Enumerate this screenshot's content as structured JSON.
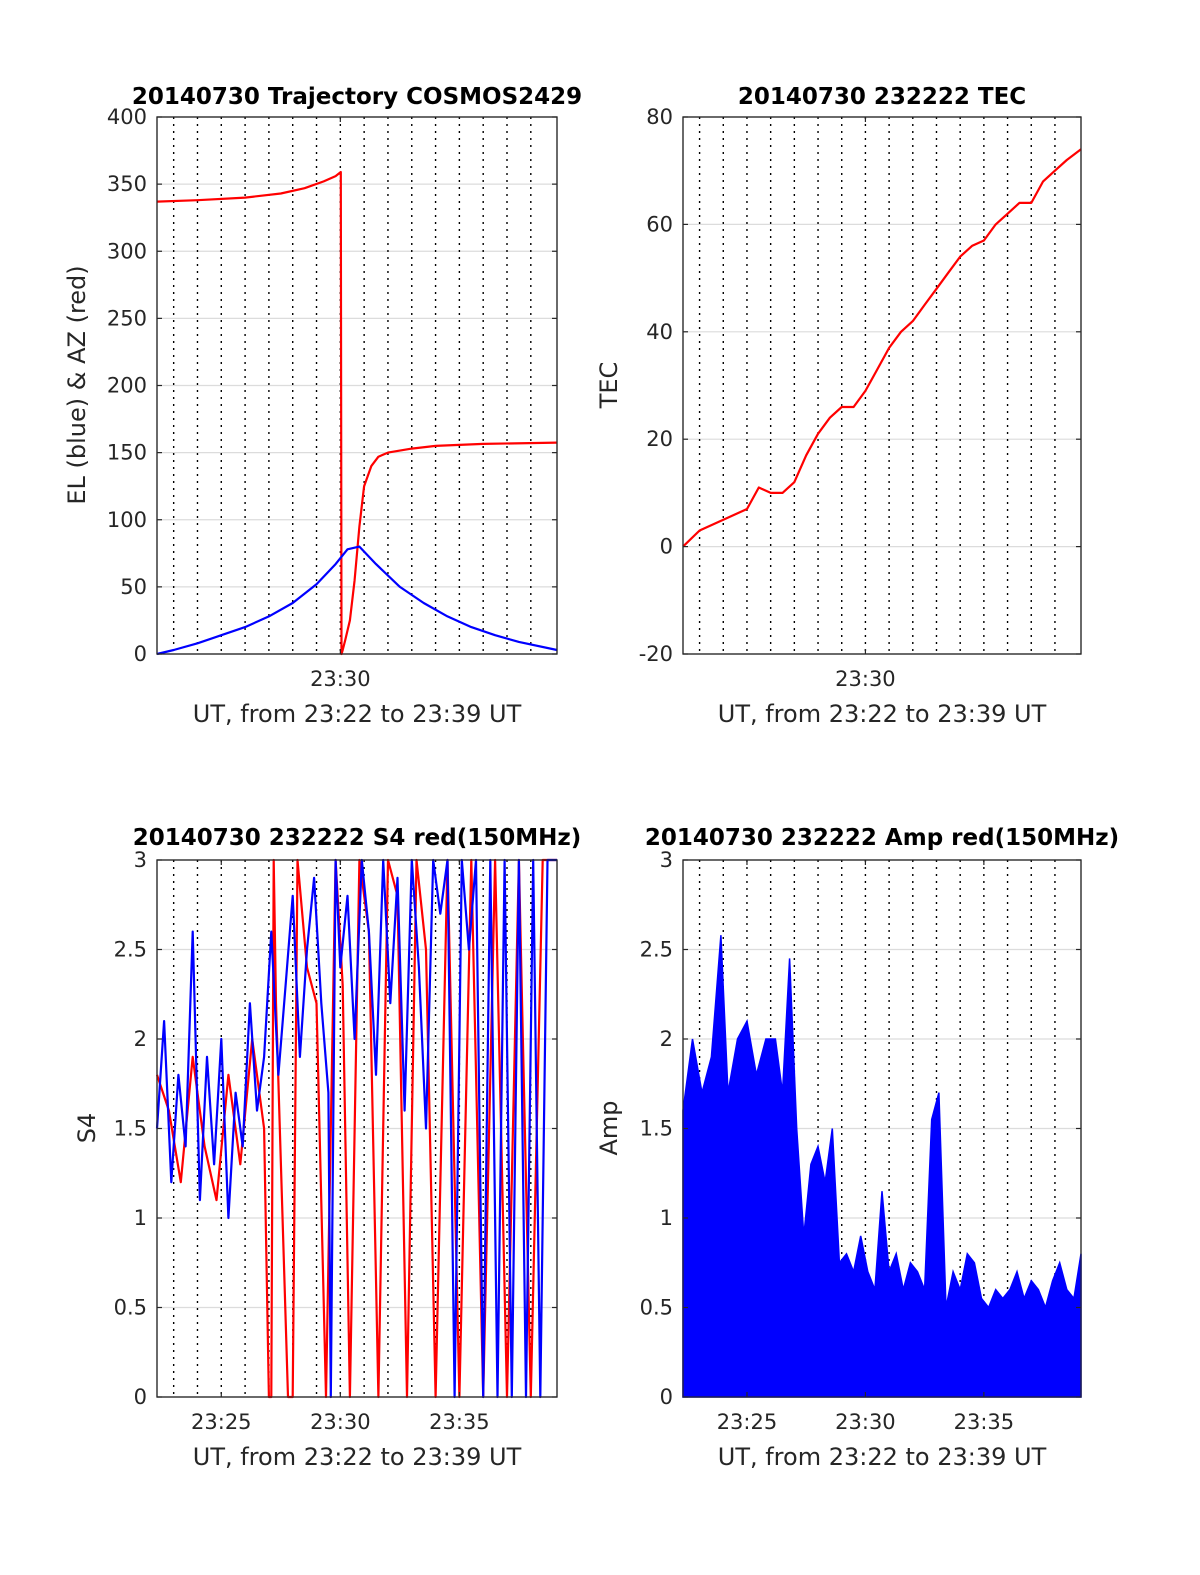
{
  "colors": {
    "red": "#ff0000",
    "blue": "#0000ff",
    "grid": "#dcdcdc"
  },
  "chart_data": [
    {
      "type": "line",
      "title": "20140730 Trajectory COSMOS2429",
      "xlabel": "UT, from 23:22 to 23:39 UT",
      "ylabel": "EL (blue) & AZ (red)",
      "xlim": [
        22.3,
        39.1
      ],
      "ylim": [
        0,
        400
      ],
      "yticks": [
        0,
        50,
        100,
        150,
        200,
        250,
        300,
        350,
        400
      ],
      "xticks": [
        {
          "v": 30,
          "label": "23:30"
        }
      ],
      "vgrid": [
        23,
        24,
        25,
        26,
        27,
        28,
        29,
        30,
        31,
        32,
        33,
        34,
        35,
        36,
        37,
        38
      ],
      "series": [
        {
          "color": "red",
          "x": [
            22.3,
            24,
            26,
            27.5,
            28.5,
            29.3,
            29.8,
            30.02,
            30.05,
            30.1,
            30.2,
            30.4,
            30.6,
            30.8,
            31.0,
            31.3,
            31.6,
            32.0,
            33.0,
            34.0,
            36.0,
            39.1
          ],
          "y": [
            337,
            338,
            340,
            343,
            347,
            352,
            356,
            359,
            0,
            3,
            10,
            25,
            55,
            95,
            125,
            140,
            147,
            150,
            153,
            155,
            156.5,
            157.5
          ]
        },
        {
          "color": "blue",
          "x": [
            22.3,
            23,
            24,
            25,
            26,
            27,
            28,
            29,
            29.8,
            30.3,
            30.8,
            31.5,
            32.5,
            33.5,
            34.5,
            35.5,
            36.5,
            37.5,
            39.1
          ],
          "y": [
            0,
            3,
            8,
            14,
            20,
            28,
            38,
            52,
            67,
            78,
            80,
            67,
            50,
            38,
            28,
            20,
            14,
            9,
            3
          ]
        }
      ]
    },
    {
      "type": "line",
      "title": "20140730 232222 TEC",
      "xlabel": "UT, from 23:22 to 23:39 UT",
      "ylabel": "TEC",
      "xlim": [
        22.3,
        39.1
      ],
      "ylim": [
        -20,
        80
      ],
      "yticks": [
        -20,
        0,
        20,
        40,
        60,
        80
      ],
      "xticks": [
        {
          "v": 30,
          "label": "23:30"
        }
      ],
      "vgrid": [
        23,
        24,
        25,
        26,
        27,
        28,
        29,
        30,
        31,
        32,
        33,
        34,
        35,
        36,
        37,
        38
      ],
      "series": [
        {
          "color": "red",
          "x": [
            22.3,
            23,
            24,
            25,
            25.5,
            26,
            26.5,
            27,
            27.5,
            28,
            28.5,
            29,
            29.5,
            30,
            30.5,
            31,
            31.5,
            32,
            32.5,
            33,
            33.5,
            34,
            34.5,
            35,
            35.5,
            36,
            36.5,
            37,
            37.5,
            38,
            38.5,
            39.1
          ],
          "y": [
            0,
            3,
            5,
            7,
            11,
            10,
            10,
            12,
            17,
            21,
            24,
            26,
            26,
            29,
            33,
            37,
            40,
            42,
            45,
            48,
            51,
            54,
            56,
            57,
            60,
            62,
            64,
            64,
            68,
            70,
            72,
            74
          ]
        }
      ]
    },
    {
      "type": "line",
      "title": "20140730 232222 S4 red(150MHz)",
      "xlabel": "UT, from 23:22 to 23:39 UT",
      "ylabel": "S4",
      "xlim": [
        22.3,
        39.1
      ],
      "ylim": [
        0,
        3
      ],
      "yticks": [
        0,
        0.5,
        1,
        1.5,
        2,
        2.5,
        3
      ],
      "xticks": [
        {
          "v": 25,
          "label": "23:25"
        },
        {
          "v": 30,
          "label": "23:30"
        },
        {
          "v": 35,
          "label": "23:35"
        }
      ],
      "vgrid": [
        23,
        24,
        25,
        26,
        27,
        28,
        29,
        30,
        31,
        32,
        33,
        34,
        35,
        36,
        37,
        38
      ],
      "series": [
        {
          "color": "red",
          "x": [
            22.3,
            22.8,
            23.3,
            23.8,
            24.3,
            24.8,
            25.3,
            25.8,
            26.3,
            26.8,
            27.0,
            27.1,
            27.2,
            27.3,
            27.8,
            28.0,
            28.2,
            28.6,
            29.0,
            29.4,
            29.8,
            30.1,
            30.4,
            30.8,
            31.2,
            31.6,
            32.0,
            32.4,
            32.8,
            33.2,
            33.6,
            34.0,
            34.5,
            35.0,
            35.5,
            36.0,
            36.5,
            37.0,
            37.5,
            38.0,
            38.5,
            39.1
          ],
          "y": [
            1.8,
            1.6,
            1.2,
            1.9,
            1.4,
            1.1,
            1.8,
            1.3,
            2.0,
            1.5,
            0,
            0,
            3,
            2.2,
            0,
            0,
            3,
            2.4,
            2.2,
            0,
            3,
            2.3,
            0,
            3,
            2.6,
            0,
            3,
            2.8,
            0,
            3,
            2.5,
            0,
            3,
            0,
            3,
            0,
            3,
            0,
            3,
            0,
            3,
            3
          ]
        },
        {
          "color": "blue",
          "x": [
            22.3,
            22.6,
            22.9,
            23.2,
            23.5,
            23.8,
            24.1,
            24.4,
            24.7,
            25.0,
            25.3,
            25.6,
            25.9,
            26.2,
            26.5,
            26.8,
            27.1,
            27.4,
            27.7,
            28.0,
            28.3,
            28.6,
            28.9,
            29.2,
            29.5,
            29.6,
            29.8,
            30.0,
            30.3,
            30.6,
            30.9,
            31.2,
            31.5,
            31.8,
            32.1,
            32.4,
            32.7,
            33.0,
            33.3,
            33.6,
            33.9,
            34.2,
            34.5,
            34.8,
            35.1,
            35.4,
            35.7,
            36.0,
            36.3,
            36.6,
            36.9,
            37.2,
            37.5,
            37.8,
            38.1,
            38.4,
            38.7,
            39.1
          ],
          "y": [
            1.5,
            2.1,
            1.2,
            1.8,
            1.4,
            2.6,
            1.1,
            1.9,
            1.3,
            2.0,
            1.0,
            1.7,
            1.4,
            2.2,
            1.6,
            1.9,
            2.6,
            1.8,
            2.3,
            2.8,
            1.9,
            2.5,
            2.9,
            2.2,
            1.7,
            0,
            3,
            2.4,
            2.8,
            2.0,
            3,
            2.6,
            1.8,
            3,
            2.2,
            2.9,
            1.6,
            3,
            2.4,
            1.5,
            3,
            2.7,
            3,
            0,
            3,
            2.5,
            3,
            0,
            3,
            0,
            3,
            0,
            3,
            0,
            3,
            0,
            3,
            3
          ]
        }
      ]
    },
    {
      "type": "line",
      "title": "20140730 232222 Amp red(150MHz)",
      "xlabel": "UT, from 23:22 to 23:39 UT",
      "ylabel": "Amp",
      "xlim": [
        22.3,
        39.1
      ],
      "ylim": [
        0,
        3
      ],
      "yticks": [
        0,
        0.5,
        1,
        1.5,
        2,
        2.5,
        3
      ],
      "xticks": [
        {
          "v": 25,
          "label": "23:25"
        },
        {
          "v": 30,
          "label": "23:30"
        },
        {
          "v": 35,
          "label": "23:35"
        }
      ],
      "vgrid": [
        23,
        24,
        25,
        26,
        27,
        28,
        29,
        30,
        31,
        32,
        33,
        34,
        35,
        36,
        37,
        38
      ],
      "series": [
        {
          "color": "blue",
          "envelope": true,
          "x": [
            22.3,
            22.7,
            23.1,
            23.5,
            23.9,
            24.2,
            24.6,
            25.0,
            25.4,
            25.8,
            26.2,
            26.5,
            26.8,
            27.1,
            27.4,
            27.7,
            28.0,
            28.3,
            28.6,
            28.9,
            29.2,
            29.5,
            29.8,
            30.1,
            30.4,
            30.7,
            31.0,
            31.3,
            31.6,
            31.9,
            32.2,
            32.5,
            32.8,
            33.1,
            33.4,
            33.7,
            34.0,
            34.3,
            34.6,
            34.9,
            35.2,
            35.5,
            35.8,
            36.1,
            36.4,
            36.7,
            37.0,
            37.3,
            37.6,
            37.9,
            38.2,
            38.5,
            38.8,
            39.1
          ],
          "y": [
            1.6,
            2.0,
            1.7,
            1.9,
            2.58,
            1.7,
            2.0,
            2.1,
            1.8,
            2.0,
            2.0,
            1.7,
            2.45,
            1.5,
            0.9,
            1.3,
            1.4,
            1.2,
            1.5,
            0.75,
            0.8,
            0.7,
            0.9,
            0.7,
            0.6,
            1.15,
            0.7,
            0.8,
            0.6,
            0.75,
            0.7,
            0.6,
            1.55,
            1.7,
            0.5,
            0.7,
            0.6,
            0.8,
            0.75,
            0.55,
            0.5,
            0.6,
            0.55,
            0.6,
            0.7,
            0.55,
            0.65,
            0.6,
            0.5,
            0.65,
            0.75,
            0.6,
            0.55,
            0.8
          ]
        }
      ]
    }
  ]
}
